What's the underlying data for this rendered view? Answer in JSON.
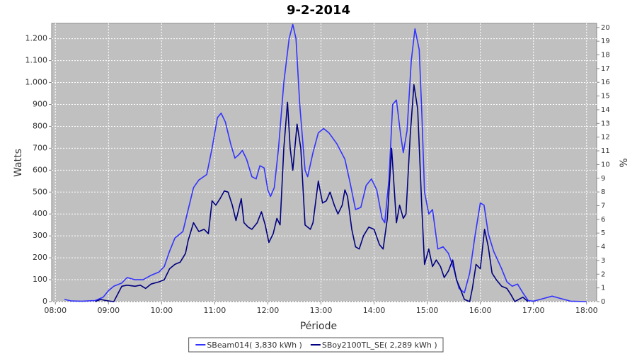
{
  "chart_data": {
    "type": "line",
    "title": "9-2-2014",
    "x_label": "Période",
    "y_label": "Watts",
    "y2_label": "%",
    "xlim": [
      7.93,
      18.19
    ],
    "xticks": [
      {
        "value": 8,
        "label": "08:00"
      },
      {
        "value": 9,
        "label": "09:00"
      },
      {
        "value": 10,
        "label": "10:00"
      },
      {
        "value": 11,
        "label": "11:00"
      },
      {
        "value": 12,
        "label": "12:00"
      },
      {
        "value": 13,
        "label": "13:00"
      },
      {
        "value": 14,
        "label": "14:00"
      },
      {
        "value": 15,
        "label": "15:00"
      },
      {
        "value": 16,
        "label": "16:00"
      },
      {
        "value": 17,
        "label": "17:00"
      },
      {
        "value": 18,
        "label": "18:00"
      }
    ],
    "ylim": [
      0,
      1270
    ],
    "yticks": [
      0,
      100,
      200,
      300,
      400,
      500,
      600,
      700,
      800,
      900,
      {
        "value": 1000,
        "label": "1.000"
      },
      {
        "value": 1100,
        "label": "1.100"
      },
      {
        "value": 1200,
        "label": "1.200"
      }
    ],
    "y2lim": [
      0,
      20.3
    ],
    "y2ticks": [
      0,
      1,
      2,
      3,
      4,
      5,
      6,
      7,
      8,
      9,
      10,
      11,
      12,
      13,
      14,
      15,
      16,
      17,
      18,
      19,
      20
    ],
    "grid": true,
    "legend": "bottom",
    "series": [
      {
        "name": "SBeam014( 3,830 kWh )",
        "color": "#3333ff",
        "x": [
          8.17,
          8.3,
          8.5,
          8.75,
          8.9,
          9.0,
          9.1,
          9.25,
          9.35,
          9.5,
          9.65,
          9.8,
          9.95,
          10.05,
          10.15,
          10.25,
          10.4,
          10.5,
          10.6,
          10.7,
          10.85,
          10.95,
          11.05,
          11.12,
          11.2,
          11.3,
          11.38,
          11.45,
          11.52,
          11.6,
          11.7,
          11.78,
          11.85,
          11.93,
          12.0,
          12.05,
          12.12,
          12.2,
          12.3,
          12.4,
          12.47,
          12.53,
          12.6,
          12.7,
          12.75,
          12.85,
          12.95,
          13.05,
          13.15,
          13.3,
          13.45,
          13.55,
          13.65,
          13.75,
          13.85,
          13.95,
          14.05,
          14.15,
          14.2,
          14.28,
          14.35,
          14.42,
          14.5,
          14.55,
          14.62,
          14.7,
          14.77,
          14.85,
          14.9,
          14.95,
          15.03,
          15.1,
          15.2,
          15.3,
          15.4,
          15.5,
          15.6,
          15.7,
          15.8,
          15.9,
          16.0,
          16.07,
          16.15,
          16.25,
          16.4,
          16.5,
          16.6,
          16.7,
          16.8,
          16.9,
          17.0,
          17.2,
          17.35,
          17.5,
          17.7,
          18.0
        ],
        "values": [
          10,
          3,
          2,
          5,
          20,
          50,
          70,
          85,
          110,
          100,
          100,
          120,
          135,
          160,
          230,
          290,
          320,
          420,
          520,
          555,
          580,
          700,
          840,
          860,
          820,
          720,
          655,
          670,
          690,
          650,
          570,
          560,
          620,
          610,
          510,
          480,
          520,
          700,
          1000,
          1200,
          1265,
          1200,
          900,
          600,
          570,
          680,
          770,
          790,
          770,
          720,
          650,
          540,
          420,
          430,
          530,
          560,
          510,
          380,
          360,
          560,
          900,
          920,
          760,
          680,
          780,
          1100,
          1245,
          1150,
          850,
          500,
          400,
          420,
          240,
          250,
          220,
          150,
          60,
          40,
          130,
          300,
          450,
          440,
          310,
          230,
          150,
          90,
          70,
          80,
          40,
          5,
          2,
          15,
          25,
          15,
          2,
          0
        ]
      },
      {
        "name": "SBoy2100TL_SE( 2,289 kWh )",
        "color": "#000080",
        "x": [
          8.75,
          8.85,
          8.95,
          9.1,
          9.25,
          9.35,
          9.5,
          9.6,
          9.7,
          9.8,
          9.95,
          10.05,
          10.15,
          10.25,
          10.35,
          10.45,
          10.5,
          10.6,
          10.7,
          10.8,
          10.88,
          10.95,
          11.02,
          11.1,
          11.18,
          11.25,
          11.33,
          11.4,
          11.45,
          11.5,
          11.55,
          11.63,
          11.7,
          11.8,
          11.88,
          11.95,
          12.02,
          12.1,
          12.17,
          12.23,
          12.3,
          12.37,
          12.42,
          12.47,
          12.55,
          12.62,
          12.7,
          12.8,
          12.85,
          12.95,
          13.03,
          13.1,
          13.17,
          13.25,
          13.32,
          13.4,
          13.45,
          13.5,
          13.58,
          13.65,
          13.72,
          13.8,
          13.9,
          14.0,
          14.1,
          14.17,
          14.25,
          14.33,
          14.42,
          14.48,
          14.55,
          14.6,
          14.68,
          14.75,
          14.82,
          14.9,
          14.95,
          15.03,
          15.1,
          15.17,
          15.25,
          15.32,
          15.4,
          15.48,
          15.55,
          15.62,
          15.7,
          15.8,
          15.85,
          15.92,
          16.0,
          16.08,
          16.15,
          16.22,
          16.3,
          16.4,
          16.5,
          16.58,
          16.65,
          16.72,
          16.8,
          16.9
        ],
        "values": [
          0,
          10,
          5,
          0,
          70,
          75,
          70,
          75,
          60,
          80,
          90,
          100,
          150,
          170,
          180,
          220,
          280,
          360,
          320,
          330,
          310,
          460,
          440,
          470,
          505,
          500,
          440,
          370,
          420,
          470,
          360,
          340,
          330,
          360,
          410,
          350,
          270,
          310,
          380,
          350,
          700,
          910,
          700,
          600,
          810,
          700,
          350,
          330,
          360,
          550,
          450,
          460,
          500,
          440,
          400,
          440,
          510,
          480,
          330,
          250,
          240,
          300,
          340,
          330,
          260,
          240,
          380,
          700,
          360,
          440,
          380,
          400,
          760,
          990,
          880,
          420,
          170,
          240,
          160,
          190,
          160,
          110,
          140,
          190,
          100,
          60,
          10,
          0,
          60,
          170,
          150,
          330,
          250,
          130,
          100,
          70,
          60,
          30,
          0,
          10,
          20,
          0
        ]
      }
    ]
  }
}
